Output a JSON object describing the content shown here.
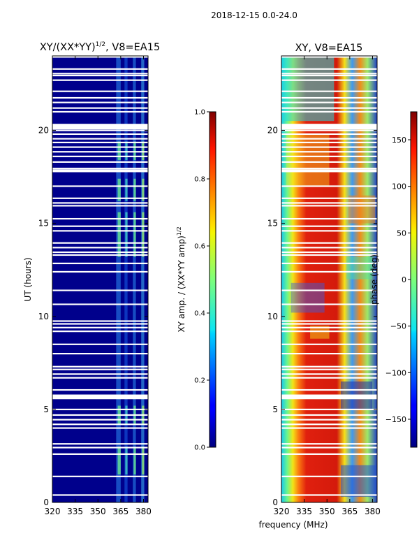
{
  "figure": {
    "suptitle": "2018-12-15 0.0-24.0",
    "xlabel": "frequency (MHz)"
  },
  "chart_data": [
    {
      "type": "heatmap",
      "title_main": "XY/(XX*YY)",
      "title_exp": "1/2",
      "title_tail": ", V8=EA15",
      "xlabel": "",
      "ylabel": "UT (hours)",
      "xlim": [
        320,
        383
      ],
      "ylim": [
        0,
        24
      ],
      "xticks": [
        "320",
        "335",
        "350",
        "365",
        "380"
      ],
      "yticks": [
        "0",
        "5",
        "10",
        "15",
        "20"
      ],
      "colorbar": {
        "label_main": "XY amp. / (XX*YY amp)",
        "label_exp": "1/2",
        "range": [
          0.0,
          1.0
        ],
        "ticks": [
          "0.0",
          "0.2",
          "0.4",
          "0.6",
          "0.8",
          "1.0"
        ],
        "colormap": "jet"
      }
    },
    {
      "type": "heatmap",
      "title_main": "XY, V8=EA15",
      "xlabel": "frequency (MHz)",
      "ylabel": "",
      "xlim": [
        320,
        383
      ],
      "ylim": [
        0,
        24
      ],
      "xticks": [
        "320",
        "335",
        "350",
        "365",
        "380"
      ],
      "yticks": [
        "0",
        "5",
        "10",
        "15",
        "20"
      ],
      "colorbar": {
        "label_main": "phase (deg)",
        "range": [
          -180,
          180
        ],
        "ticks": [
          "−150",
          "−100",
          "−50",
          "0",
          "50",
          "100",
          "150"
        ],
        "colormap": "jet"
      }
    }
  ],
  "gaps_ut_hours": [
    0.4,
    1.4,
    2.6,
    2.95,
    3.15,
    4.0,
    4.2,
    4.45,
    4.7,
    5.0,
    5.6,
    5.75,
    6.05,
    6.7,
    6.9,
    7.15,
    7.3,
    8.0,
    8.5,
    9.2,
    9.4,
    9.6,
    9.75,
    10.65,
    11.4,
    12.4,
    12.85,
    13.3,
    13.45,
    13.7,
    13.95,
    14.6,
    14.85,
    15.25,
    15.95,
    16.1,
    16.35,
    17.0,
    17.8,
    17.95,
    18.3,
    18.6,
    18.85,
    19.1,
    19.35,
    19.55,
    19.8,
    20.0,
    20.25,
    21.0,
    21.2,
    21.5,
    21.75,
    22.1,
    22.7,
    22.95,
    23.05,
    23.3,
    23.95
  ]
}
